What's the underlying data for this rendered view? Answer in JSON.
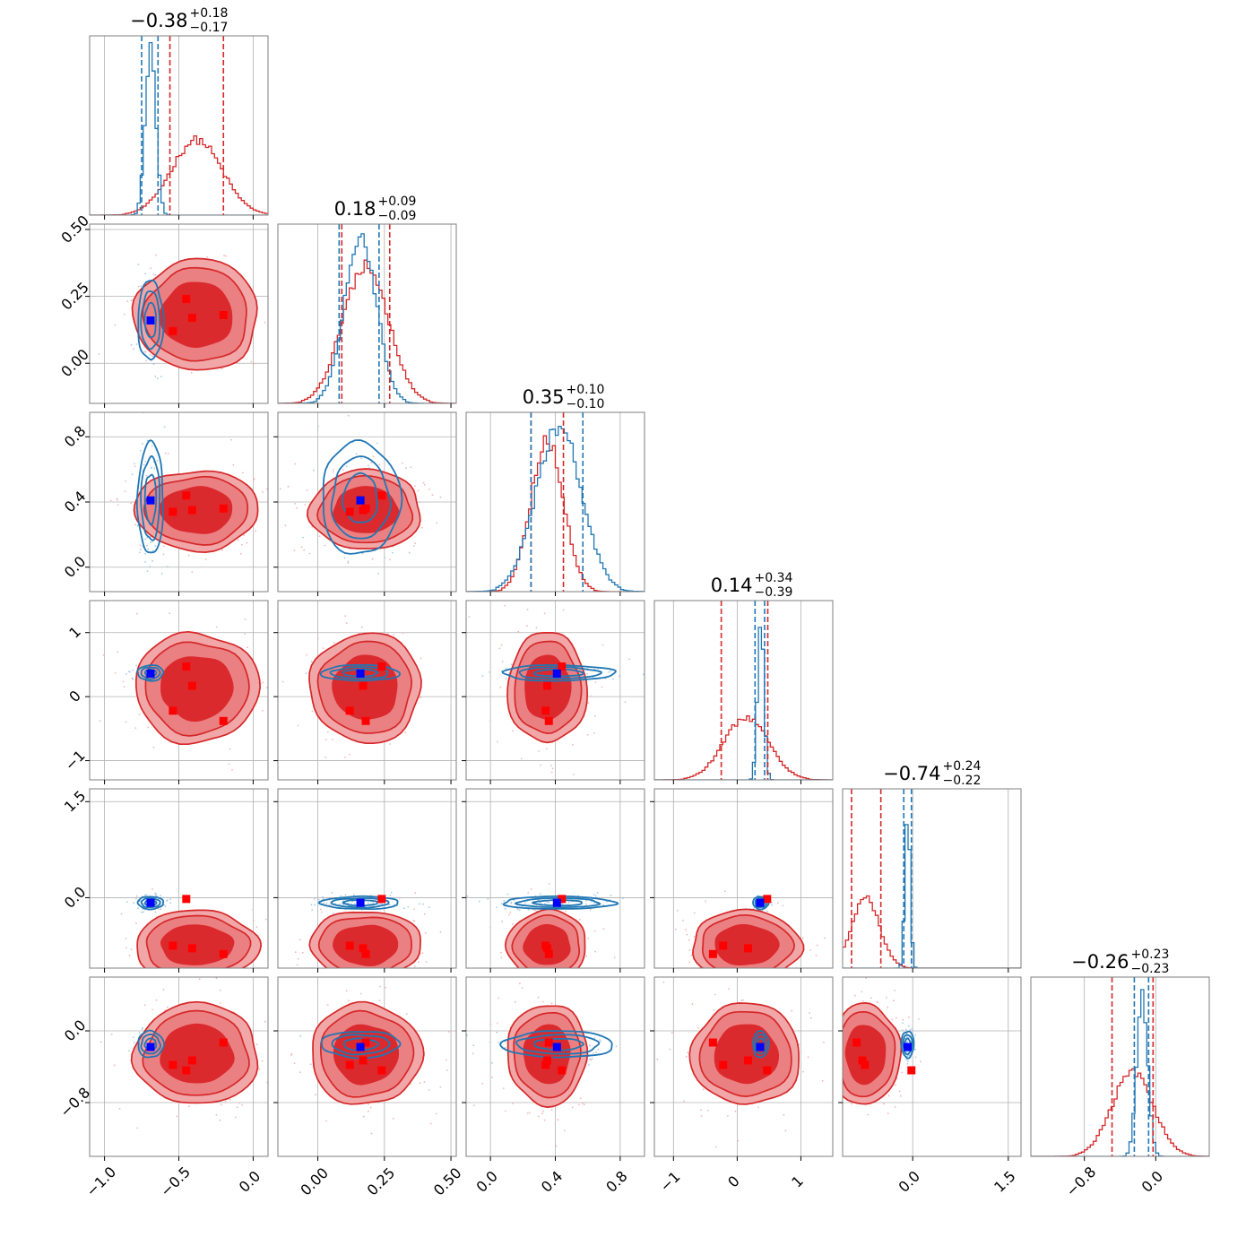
{
  "chart_data": {
    "type": "corner",
    "n_params": 6,
    "colors": {
      "a": "#1f77b4",
      "b": "#d62728",
      "marker_a": "#0000ff",
      "marker_b": "#ff0000"
    },
    "grid": true,
    "params": [
      {
        "range": [
          -1.1,
          0.1
        ],
        "ticks": [
          -1.0,
          -0.5,
          0.0
        ],
        "tick_labels": [
          "−1.0",
          "−0.5",
          "0.0"
        ],
        "title": {
          "main": "−0.38",
          "upper": "+0.18",
          "lower": "−0.17"
        },
        "a": {
          "mean": -0.69,
          "sd": 0.035,
          "q": [
            -0.75,
            -0.64
          ]
        },
        "b": {
          "mean": -0.38,
          "sd": 0.17,
          "q": [
            -0.56,
            -0.2
          ]
        }
      },
      {
        "range": [
          -0.15,
          0.52
        ],
        "ticks": [
          0.0,
          0.25,
          0.5
        ],
        "tick_labels": [
          "0.00",
          "0.25",
          "0.50"
        ],
        "title": {
          "main": "0.18",
          "upper": "+0.09",
          "lower": "−0.09"
        },
        "a": {
          "mean": 0.16,
          "sd": 0.06,
          "q": [
            0.08,
            0.23
          ]
        },
        "b": {
          "mean": 0.18,
          "sd": 0.085,
          "q": [
            0.09,
            0.27
          ]
        }
      },
      {
        "range": [
          -0.15,
          0.95
        ],
        "ticks": [
          0.0,
          0.4,
          0.8
        ],
        "tick_labels": [
          "0.0",
          "0.4",
          "0.8"
        ],
        "title": {
          "main": "0.35",
          "upper": "+0.10",
          "lower": "−0.10"
        },
        "a": {
          "mean": 0.42,
          "sd": 0.14,
          "q": [
            0.25,
            0.57
          ]
        },
        "b": {
          "mean": 0.35,
          "sd": 0.1,
          "q": [
            0.25,
            0.45
          ]
        }
      },
      {
        "range": [
          -1.3,
          1.5
        ],
        "ticks": [
          -1,
          0,
          1
        ],
        "tick_labels": [
          "−1",
          "0",
          "1"
        ],
        "title": {
          "main": "0.14",
          "upper": "+0.34",
          "lower": "−0.39"
        },
        "a": {
          "mean": 0.37,
          "sd": 0.05,
          "q": [
            0.28,
            0.43
          ]
        },
        "b": {
          "mean": 0.14,
          "sd": 0.35,
          "q": [
            -0.25,
            0.48
          ]
        }
      },
      {
        "range": [
          -1.1,
          1.7
        ],
        "ticks": [
          0.0,
          1.5
        ],
        "tick_labels": [
          "0.0",
          "1.5"
        ],
        "title": {
          "main": "−0.74",
          "upper": "+0.24",
          "lower": "−0.22"
        },
        "a": {
          "mean": -0.08,
          "sd": 0.04,
          "q": [
            -0.14,
            -0.02
          ]
        },
        "b": {
          "mean": -0.74,
          "sd": 0.22,
          "q": [
            -0.96,
            -0.5
          ]
        }
      },
      {
        "range": [
          -1.4,
          0.6
        ],
        "ticks": [
          -0.8,
          0.0
        ],
        "tick_labels": [
          "−0.8",
          "0.0"
        ],
        "title": {
          "main": "−0.26",
          "upper": "+0.23",
          "lower": "−0.23"
        },
        "a": {
          "mean": -0.15,
          "sd": 0.06,
          "q": [
            -0.24,
            -0.08
          ]
        },
        "b": {
          "mean": -0.26,
          "sd": 0.23,
          "q": [
            -0.49,
            -0.03
          ]
        }
      }
    ],
    "markers_a": [
      [
        -0.69,
        0.16,
        0.41,
        0.36,
        -0.08,
        -0.18
      ]
    ],
    "markers_b": [
      [
        -0.54,
        0.12,
        0.34,
        -0.22,
        -0.75,
        -0.38
      ],
      [
        -0.45,
        0.24,
        0.44,
        0.47,
        -0.02,
        -0.44
      ],
      [
        -0.41,
        0.17,
        0.35,
        0.17,
        -0.79,
        -0.33
      ],
      [
        -0.2,
        0.18,
        0.36,
        -0.38,
        -0.88,
        -0.13
      ]
    ]
  }
}
